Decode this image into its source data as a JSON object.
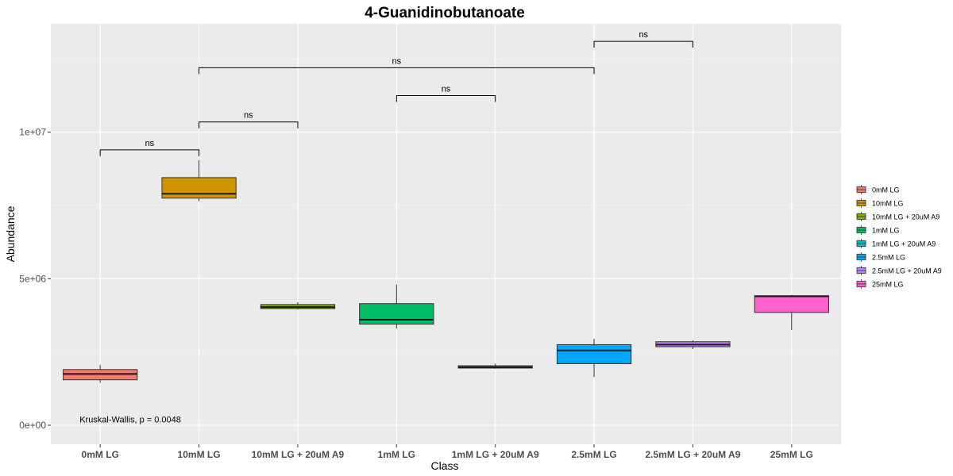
{
  "chart_data": {
    "type": "box",
    "title": "4-Guanidinobutanoate",
    "xlabel": "Class",
    "ylabel": "Abundance",
    "ylim": [
      -650000,
      13700000
    ],
    "yticks": [
      {
        "value": 0,
        "label": "0e+00"
      },
      {
        "value": 5000000,
        "label": "5e+06"
      },
      {
        "value": 10000000,
        "label": "1e+07"
      }
    ],
    "grid": true,
    "legend_position": "right",
    "categories": [
      "0mM LG",
      "10mM LG",
      "10mM LG + 20uM A9",
      "1mM LG",
      "1mM LG + 20uM A9",
      "2.5mM LG",
      "2.5mM LG + 20uM A9",
      "25mM LG"
    ],
    "boxes": [
      {
        "name": "0mM LG",
        "color": "#F8766D",
        "min": 1450000,
        "q1": 1550000,
        "median": 1750000,
        "q3": 1900000,
        "max": 2050000
      },
      {
        "name": "10mM LG",
        "color": "#CD9600",
        "min": 7650000,
        "q1": 7750000,
        "median": 7900000,
        "q3": 8450000,
        "max": 9050000
      },
      {
        "name": "10mM LG + 20uM A9",
        "color": "#7CAE00",
        "min": 3950000,
        "q1": 3980000,
        "median": 4030000,
        "q3": 4120000,
        "max": 4200000
      },
      {
        "name": "1mM LG",
        "color": "#00BE67",
        "min": 3300000,
        "q1": 3450000,
        "median": 3600000,
        "q3": 4150000,
        "max": 4800000
      },
      {
        "name": "1mM LG + 20uM A9",
        "color": "#00BFC4",
        "min": 1930000,
        "q1": 1950000,
        "median": 1980000,
        "q3": 2030000,
        "max": 2100000
      },
      {
        "name": "2.5mM LG",
        "color": "#00A9FF",
        "min": 1650000,
        "q1": 2100000,
        "median": 2550000,
        "q3": 2750000,
        "max": 2950000
      },
      {
        "name": "2.5mM LG + 20uM A9",
        "color": "#C77CFF",
        "min": 2600000,
        "q1": 2680000,
        "median": 2750000,
        "q3": 2850000,
        "max": 2900000
      },
      {
        "name": "25mM LG",
        "color": "#FF61CC",
        "min": 3250000,
        "q1": 3850000,
        "median": 4400000,
        "q3": 4420000,
        "max": 4450000
      }
    ],
    "comparisons": [
      {
        "from": 0,
        "to": 1,
        "y": 9400000,
        "label": "ns"
      },
      {
        "from": 1,
        "to": 2,
        "y": 10350000,
        "label": "ns"
      },
      {
        "from": 3,
        "to": 4,
        "y": 11250000,
        "label": "ns"
      },
      {
        "from": 1,
        "to": 5,
        "y": 12200000,
        "label": "ns"
      },
      {
        "from": 5,
        "to": 6,
        "y": 13100000,
        "label": "ns"
      }
    ],
    "annotation": {
      "text": "Kruskal-Wallis, p = 0.0048",
      "x_index": 0,
      "y": 100000
    }
  }
}
